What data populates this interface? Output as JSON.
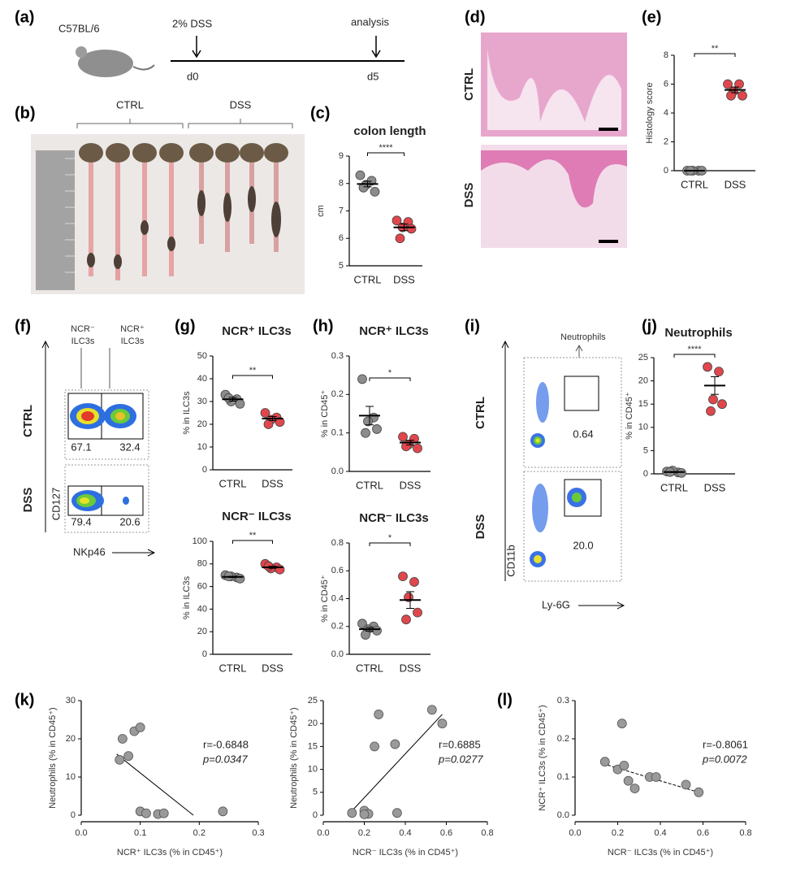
{
  "figure": {
    "panels": [
      "(a)",
      "(b)",
      "(c)",
      "(d)",
      "(e)",
      "(f)",
      "(g)",
      "(h)",
      "(i)",
      "(j)",
      "(k)",
      "(l)"
    ],
    "a": {
      "strain": "C57BL/6",
      "treatment": "2% DSS",
      "endpoint": "analysis",
      "day0": "d0",
      "day5": "d5"
    },
    "b": {
      "groups": [
        "CTRL",
        "DSS"
      ]
    },
    "d": {
      "rows": [
        "CTRL",
        "DSS"
      ]
    },
    "f": {
      "gates": [
        [
          "NCR⁻",
          "ILC3s"
        ],
        [
          "NCR⁺",
          "ILC3s"
        ]
      ],
      "rows": [
        "CTRL",
        "DSS"
      ],
      "y_axis": "CD127",
      "x_axis": "NKp46",
      "percentages": [
        [
          67.1,
          32.4
        ],
        [
          79.4,
          20.6
        ]
      ]
    },
    "i": {
      "gate": "Neutrophils",
      "rows": [
        "CTRL",
        "DSS"
      ],
      "y_axis": "CD11b",
      "x_axis": "Ly-6G",
      "percentages": [
        0.64,
        {
          "value": 20,
          "label": "20.0"
        }
      ]
    }
  },
  "chart_data": [
    {
      "type": "dot",
      "title": "colon length",
      "y_label": "cm",
      "categories": [
        "CTRL",
        "DSS"
      ],
      "colors": [
        "#8c8c8c",
        "#e0474c"
      ],
      "values": [
        [
          8.3,
          8.1,
          7.95,
          7.7,
          7.85
        ],
        [
          6.65,
          6.6,
          6.4,
          6.35,
          6.0
        ]
      ],
      "means": [
        7.98,
        6.4
      ],
      "errors": [
        0.1,
        0.12
      ],
      "ylim": [
        5,
        9
      ],
      "yticks": [
        5,
        6,
        7,
        8,
        9
      ],
      "annotation": "****"
    },
    {
      "type": "dot",
      "y_label": "Histology score",
      "categories": [
        "CTRL",
        "DSS"
      ],
      "colors": [
        "#8c8c8c",
        "#e0474c"
      ],
      "values": [
        [
          0,
          0,
          0,
          0,
          0
        ],
        [
          6,
          6,
          5.5,
          5.2,
          5.2
        ]
      ],
      "means": [
        0,
        5.6
      ],
      "errors": [
        0,
        0.2
      ],
      "ylim": [
        0,
        8
      ],
      "yticks": [
        0,
        2,
        4,
        6,
        8
      ],
      "annotation": "**"
    },
    {
      "type": "dot",
      "title": "NCR⁺ ILC3s",
      "y_label": "% in ILC3s",
      "categories": [
        "CTRL",
        "DSS"
      ],
      "colors": [
        "#8c8c8c",
        "#e0474c"
      ],
      "values": [
        [
          33,
          31,
          30,
          29,
          31.5
        ],
        [
          25,
          23,
          22,
          21,
          20
        ]
      ],
      "means": [
        31,
        22.5
      ],
      "errors": [
        0.8,
        0.9
      ],
      "ylim": [
        0,
        50
      ],
      "yticks": [
        0,
        10,
        20,
        30,
        40,
        50
      ],
      "annotation": "**"
    },
    {
      "type": "dot",
      "title": "NCR⁻ ILC3s",
      "y_label": "% in ILC3s",
      "categories": [
        "CTRL",
        "DSS"
      ],
      "colors": [
        "#8c8c8c",
        "#e0474c"
      ],
      "values": [
        [
          70,
          68,
          69,
          67,
          69
        ],
        [
          80,
          77,
          76,
          75,
          78
        ]
      ],
      "means": [
        68.5,
        77
      ],
      "errors": [
        0.5,
        0.9
      ],
      "ylim": [
        0,
        100
      ],
      "yticks": [
        0,
        20,
        40,
        60,
        80,
        100
      ],
      "annotation": "**"
    },
    {
      "type": "dot",
      "title": "NCR⁺ ILC3s",
      "y_label": "% in CD45⁺",
      "categories": [
        "CTRL",
        "DSS"
      ],
      "colors": [
        "#8c8c8c",
        "#e0474c"
      ],
      "values": [
        [
          0.24,
          0.14,
          0.13,
          0.11,
          0.1
        ],
        [
          0.09,
          0.085,
          0.07,
          0.06,
          0.065
        ]
      ],
      "means": [
        0.145,
        0.075
      ],
      "errors": [
        0.024,
        0.006
      ],
      "ylim": [
        0,
        0.3
      ],
      "yticks": [
        {
          "value": 0,
          "label": "0.0"
        },
        0.1,
        0.2,
        0.3
      ],
      "annotation": "*"
    },
    {
      "type": "dot",
      "title": "NCR⁻ ILC3s",
      "y_label": "% in CD45⁺",
      "categories": [
        "CTRL",
        "DSS"
      ],
      "colors": [
        "#8c8c8c",
        "#e0474c"
      ],
      "values": [
        [
          0.22,
          0.2,
          0.18,
          0.17,
          0.14
        ],
        [
          0.56,
          0.52,
          0.41,
          0.3,
          0.25
        ]
      ],
      "means": [
        0.18,
        0.39
      ],
      "errors": [
        0.014,
        0.06
      ],
      "ylim": [
        0,
        0.8
      ],
      "yticks": [
        {
          "value": 0,
          "label": "0.0"
        },
        0.2,
        0.4,
        0.6,
        0.8
      ],
      "annotation": "*"
    },
    {
      "type": "dot",
      "title": "Neutrophils",
      "y_label": "% in CD45⁺",
      "categories": [
        "CTRL",
        "DSS"
      ],
      "colors": [
        "#8c8c8c",
        "#e0474c"
      ],
      "values": [
        [
          0.5,
          0.3,
          0.7,
          0.2,
          0.4
        ],
        [
          23,
          22,
          16,
          15,
          13.5
        ]
      ],
      "means": [
        0.4,
        19
      ],
      "errors": [
        0.09,
        1.9
      ],
      "ylim": [
        0,
        25
      ],
      "yticks": [
        0,
        5,
        10,
        15,
        20,
        25
      ],
      "annotation": "****"
    },
    {
      "type": "scatter",
      "x_label": "NCR⁺ ILC3s (% in CD45⁺)",
      "y_label": "Neutrophils (% in CD45⁺)",
      "color": "#9a9a9a",
      "x": [
        0.065,
        0.07,
        0.08,
        0.09,
        0.1,
        0.1,
        0.11,
        0.13,
        0.14,
        0.24
      ],
      "values": [
        14.5,
        20,
        15.5,
        22,
        23,
        1,
        0.5,
        0.3,
        0.5,
        1
      ],
      "xlim": [
        0,
        0.3
      ],
      "xticks": [
        {
          "value": 0,
          "label": "0.0"
        },
        0.1,
        0.2,
        0.3
      ],
      "ylim": [
        0,
        30
      ],
      "yticks": [
        0,
        10,
        20,
        30
      ],
      "trend": {
        "x": [
          0.06,
          0.19
        ],
        "y": [
          16,
          0
        ]
      },
      "annotation": [
        "r=-0.6848",
        "p=0.0347"
      ]
    },
    {
      "type": "scatter",
      "x_label": "NCR⁻ ILC3s (% in CD45⁺)",
      "y_label": "Neutrophils (% in CD45⁺)",
      "color": "#9a9a9a",
      "x": [
        0.14,
        0.2,
        0.22,
        0.25,
        0.27,
        0.35,
        0.36,
        0.53,
        0.58,
        0.2
      ],
      "values": [
        0.5,
        1,
        0.3,
        15,
        22,
        15.5,
        0.5,
        23,
        20,
        0.2
      ],
      "xlim": [
        0,
        0.8
      ],
      "xticks": [
        {
          "value": 0,
          "label": "0.0"
        },
        0.2,
        0.4,
        0.6,
        0.8
      ],
      "ylim": [
        0,
        25
      ],
      "yticks": [
        0,
        5,
        10,
        15,
        20,
        25
      ],
      "trend": {
        "x": [
          0.12,
          0.58
        ],
        "y": [
          0,
          22
        ]
      },
      "annotation": [
        "r=0.6885",
        "p=0.0277"
      ]
    },
    {
      "type": "scatter",
      "x_label": "NCR⁻ ILC3s (% in CD45⁺)",
      "y_label": "NCR⁺ ILC3s (% in CD45⁺)",
      "color": "#9a9a9a",
      "x": [
        0.14,
        0.2,
        0.22,
        0.23,
        0.25,
        0.28,
        0.35,
        0.38,
        0.52,
        0.58
      ],
      "values": [
        0.14,
        0.12,
        0.24,
        0.13,
        0.09,
        0.07,
        0.1,
        0.1,
        0.08,
        0.06
      ],
      "xlim": [
        0,
        0.8
      ],
      "xticks": [
        {
          "value": 0,
          "label": "0.0"
        },
        0.2,
        0.4,
        0.6,
        0.8
      ],
      "ylim": [
        0,
        0.3
      ],
      "yticks": [
        {
          "value": 0,
          "label": "0.0"
        },
        0.1,
        0.2,
        0.3
      ],
      "trend": {
        "x": [
          0.13,
          0.58
        ],
        "y": [
          0.135,
          0.06
        ]
      },
      "annotation": [
        "r=-0.8061",
        "p=0.0072"
      ]
    }
  ]
}
